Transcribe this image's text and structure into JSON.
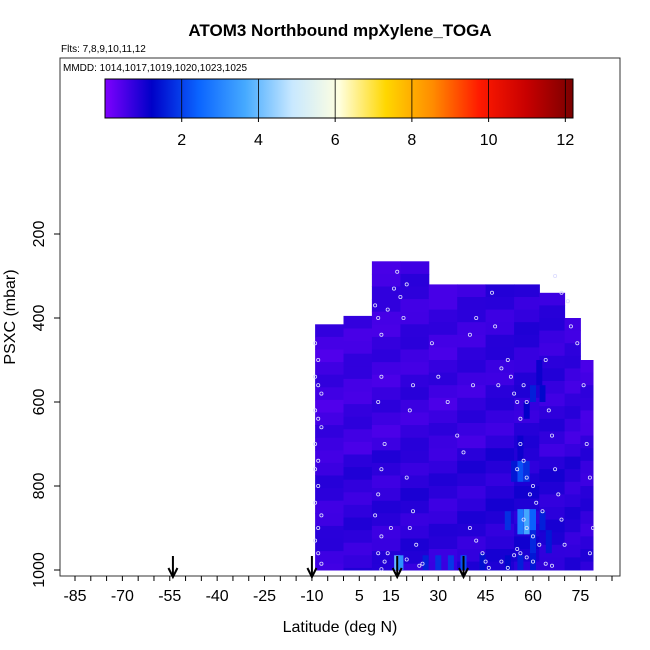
{
  "chart_data": {
    "type": "heatmap",
    "title": "ATOM3 Northbound mpXylene_TOGA",
    "subtitle_flights": "Flts: 7,8,9,10,11,12",
    "subtitle_dates": "MMDD: 1014,1017,1019,1020,1023,1025",
    "xlabel": "Latitude (deg N)",
    "ylabel": "PSXC (mbar)",
    "x_ticks": [
      "-85",
      "-70",
      "-55",
      "-40",
      "-25",
      "-10",
      "5",
      "15",
      "30",
      "45",
      "60",
      "75"
    ],
    "y_ticks": [
      "200",
      "400",
      "600",
      "800",
      "1000"
    ],
    "colorbar_ticks": [
      "2",
      "4",
      "6",
      "8",
      "10",
      "12"
    ],
    "colorbar_range": [
      0,
      12.2
    ],
    "colorbar_colors": [
      "#7f00ff",
      "#0000c8",
      "#0a64ff",
      "#46aaff",
      "#c8e8ff",
      "#ffffe0",
      "#ffd700",
      "#ff8c00",
      "#ff1a00",
      "#c80000",
      "#7a0000"
    ],
    "xlim": [
      -85,
      85
    ],
    "ylim": [
      1000,
      0
    ],
    "grid": false,
    "flight_arrows_lat": [
      -54,
      -10,
      17,
      38
    ],
    "columns": [
      {
        "lat0": -9,
        "lat1": 0,
        "ptop": 415,
        "pbot": 1000,
        "base": 0.6
      },
      {
        "lat0": 0,
        "lat1": 9,
        "ptop": 395,
        "pbot": 1000,
        "base": 0.65
      },
      {
        "lat0": 9,
        "lat1": 18,
        "ptop": 265,
        "pbot": 1000,
        "base": 0.65
      },
      {
        "lat0": 18,
        "lat1": 27,
        "ptop": 265,
        "pbot": 1000,
        "base": 0.7
      },
      {
        "lat0": 27,
        "lat1": 36,
        "ptop": 320,
        "pbot": 1000,
        "base": 0.65
      },
      {
        "lat0": 36,
        "lat1": 45,
        "ptop": 320,
        "pbot": 1000,
        "base": 0.7
      },
      {
        "lat0": 45,
        "lat1": 54,
        "ptop": 320,
        "pbot": 1000,
        "base": 0.75
      },
      {
        "lat0": 54,
        "lat1": 62,
        "ptop": 320,
        "pbot": 1000,
        "base": 0.8
      },
      {
        "lat0": 62,
        "lat1": 70,
        "ptop": 340,
        "pbot": 1000,
        "base": 0.75
      },
      {
        "lat0": 70,
        "lat1": 75,
        "ptop": 400,
        "pbot": 1000,
        "base": 0.7
      },
      {
        "lat0": 75,
        "lat1": 79,
        "ptop": 500,
        "pbot": 1000,
        "base": 0.65
      }
    ],
    "enhancements": [
      {
        "lat": 17,
        "p0": 965,
        "p1": 1000,
        "value": 4.0
      },
      {
        "lat": 18,
        "p0": 965,
        "p1": 1000,
        "value": 3.2
      },
      {
        "lat": 26,
        "p0": 965,
        "p1": 1000,
        "value": 1.6
      },
      {
        "lat": 30,
        "p0": 965,
        "p1": 1000,
        "value": 1.8
      },
      {
        "lat": 34,
        "p0": 965,
        "p1": 1000,
        "value": 1.9
      },
      {
        "lat": 38,
        "p0": 965,
        "p1": 1000,
        "value": 2.2
      },
      {
        "lat": 52,
        "p0": 965,
        "p1": 1000,
        "value": 1.3
      },
      {
        "lat": 56,
        "p0": 965,
        "p1": 1000,
        "value": 1.6
      },
      {
        "lat": 60,
        "p0": 960,
        "p1": 1000,
        "value": 1.5
      },
      {
        "lat": 52,
        "p0": 860,
        "p1": 905,
        "value": 1.8
      },
      {
        "lat": 56,
        "p0": 855,
        "p1": 915,
        "value": 2.8
      },
      {
        "lat": 58,
        "p0": 855,
        "p1": 915,
        "value": 3.6
      },
      {
        "lat": 60,
        "p0": 855,
        "p1": 915,
        "value": 2.4
      },
      {
        "lat": 63,
        "p0": 860,
        "p1": 905,
        "value": 1.6
      },
      {
        "lat": 60,
        "p0": 905,
        "p1": 960,
        "value": 1.7
      },
      {
        "lat": 65,
        "p0": 905,
        "p1": 960,
        "value": 1.5
      },
      {
        "lat": 58,
        "p0": 740,
        "p1": 790,
        "value": 1.8
      },
      {
        "lat": 56,
        "p0": 740,
        "p1": 790,
        "value": 2.2
      },
      {
        "lat": 54,
        "p0": 740,
        "p1": 790,
        "value": 1.5
      },
      {
        "lat": 56,
        "p0": 680,
        "p1": 740,
        "value": 1.1
      },
      {
        "lat": 60,
        "p0": 560,
        "p1": 600,
        "value": 1.6
      },
      {
        "lat": 63,
        "p0": 560,
        "p1": 600,
        "value": 1.3
      },
      {
        "lat": 58,
        "p0": 600,
        "p1": 640,
        "value": 1.2
      },
      {
        "lat": 62,
        "p0": 500,
        "p1": 560,
        "value": 1.1
      },
      {
        "lat": 44,
        "p0": 960,
        "p1": 1000,
        "value": 1.4
      }
    ],
    "sample_points": [
      [
        -9,
        460
      ],
      [
        -8,
        500
      ],
      [
        -9,
        540
      ],
      [
        -8,
        560
      ],
      [
        -7,
        580
      ],
      [
        -9,
        620
      ],
      [
        -8,
        640
      ],
      [
        -7,
        660
      ],
      [
        -9,
        700
      ],
      [
        -8,
        740
      ],
      [
        -9,
        760
      ],
      [
        -8,
        800
      ],
      [
        -9,
        840
      ],
      [
        -7,
        870
      ],
      [
        -8,
        900
      ],
      [
        -9,
        930
      ],
      [
        -8,
        960
      ],
      [
        -7,
        985
      ],
      [
        10,
        370
      ],
      [
        11,
        400
      ],
      [
        12,
        440
      ],
      [
        14,
        380
      ],
      [
        12,
        540
      ],
      [
        11,
        600
      ],
      [
        13,
        700
      ],
      [
        12,
        760
      ],
      [
        11,
        820
      ],
      [
        10,
        870
      ],
      [
        12,
        920
      ],
      [
        11,
        960
      ],
      [
        13,
        980
      ],
      [
        12,
        998
      ],
      [
        15,
        900
      ],
      [
        14,
        960
      ],
      [
        16,
        330
      ],
      [
        17,
        290
      ],
      [
        18,
        350
      ],
      [
        20,
        320
      ],
      [
        19,
        400
      ],
      [
        22,
        560
      ],
      [
        21,
        620
      ],
      [
        20,
        780
      ],
      [
        22,
        860
      ],
      [
        21,
        900
      ],
      [
        23,
        940
      ],
      [
        20,
        975
      ],
      [
        24,
        990
      ],
      [
        25,
        985
      ],
      [
        28,
        460
      ],
      [
        30,
        540
      ],
      [
        33,
        600
      ],
      [
        36,
        680
      ],
      [
        38,
        720
      ],
      [
        40,
        440
      ],
      [
        41,
        560
      ],
      [
        42,
        400
      ],
      [
        40,
        900
      ],
      [
        42,
        930
      ],
      [
        44,
        960
      ],
      [
        46,
        995
      ],
      [
        45,
        980
      ],
      [
        47,
        340
      ],
      [
        48,
        420
      ],
      [
        49,
        560
      ],
      [
        50,
        520
      ],
      [
        52,
        500
      ],
      [
        53,
        540
      ],
      [
        54,
        580
      ],
      [
        55,
        600
      ],
      [
        56,
        640
      ],
      [
        57,
        560
      ],
      [
        58,
        600
      ],
      [
        56,
        700
      ],
      [
        57,
        740
      ],
      [
        55,
        760
      ],
      [
        58,
        780
      ],
      [
        60,
        800
      ],
      [
        59,
        820
      ],
      [
        61,
        840
      ],
      [
        63,
        860
      ],
      [
        57,
        880
      ],
      [
        58,
        900
      ],
      [
        60,
        920
      ],
      [
        62,
        940
      ],
      [
        55,
        950
      ],
      [
        56,
        960
      ],
      [
        58,
        970
      ],
      [
        60,
        980
      ],
      [
        64,
        985
      ],
      [
        66,
        990
      ],
      [
        52,
        995
      ],
      [
        50,
        980
      ],
      [
        54,
        965
      ],
      [
        64,
        500
      ],
      [
        65,
        620
      ],
      [
        66,
        680
      ],
      [
        67,
        760
      ],
      [
        68,
        820
      ],
      [
        69,
        880
      ],
      [
        70,
        940
      ],
      [
        67,
        300
      ],
      [
        69,
        340
      ],
      [
        71,
        360
      ],
      [
        72,
        420
      ],
      [
        74,
        460
      ],
      [
        76,
        560
      ],
      [
        77,
        700
      ],
      [
        78,
        780
      ],
      [
        79,
        900
      ],
      [
        78,
        960
      ]
    ]
  }
}
